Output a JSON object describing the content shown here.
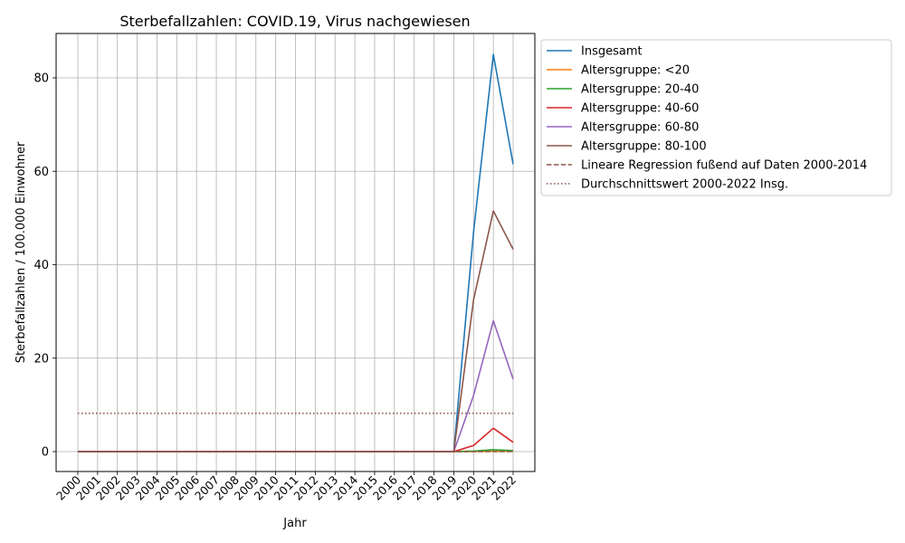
{
  "chart_data": {
    "type": "line",
    "title": "Sterbefallzahlen: COVID.19, Virus nachgewiesen",
    "xlabel": "Jahr",
    "ylabel": "Sterbefallzahlen / 100.000 Einwohner",
    "ylim": [
      -4.3,
      89.3
    ],
    "yticks": [
      0,
      20,
      40,
      60,
      80
    ],
    "grid": true,
    "legend_position": "outside upper right",
    "x": [
      2000,
      2001,
      2002,
      2003,
      2004,
      2005,
      2006,
      2007,
      2008,
      2009,
      2010,
      2011,
      2012,
      2013,
      2014,
      2015,
      2016,
      2017,
      2018,
      2019,
      2020,
      2021,
      2022
    ],
    "series": [
      {
        "name": "Insgesamt",
        "color": "#1f77b4",
        "style": "solid",
        "values": [
          0,
          0,
          0,
          0,
          0,
          0,
          0,
          0,
          0,
          0,
          0,
          0,
          0,
          0,
          0,
          0,
          0,
          0,
          0,
          0,
          47.0,
          85.0,
          61.5
        ]
      },
      {
        "name": "Altersgruppe: <20",
        "color": "#ff7f0e",
        "style": "solid",
        "values": [
          0,
          0,
          0,
          0,
          0,
          0,
          0,
          0,
          0,
          0,
          0,
          0,
          0,
          0,
          0,
          0,
          0,
          0,
          0,
          0,
          0.0,
          0.05,
          0.05
        ]
      },
      {
        "name": "Altersgruppe: 20-40",
        "color": "#2ca02c",
        "style": "solid",
        "values": [
          0,
          0,
          0,
          0,
          0,
          0,
          0,
          0,
          0,
          0,
          0,
          0,
          0,
          0,
          0,
          0,
          0,
          0,
          0,
          0,
          0.1,
          0.4,
          0.2
        ]
      },
      {
        "name": "Altersgruppe: 40-60",
        "color": "#d62728",
        "style": "solid",
        "values": [
          0,
          0,
          0,
          0,
          0,
          0,
          0,
          0,
          0,
          0,
          0,
          0,
          0,
          0,
          0,
          0,
          0,
          0,
          0,
          0,
          1.3,
          5.0,
          2.0
        ]
      },
      {
        "name": "Altersgruppe: 60-80",
        "color": "#9467bd",
        "style": "solid",
        "values": [
          0,
          0,
          0,
          0,
          0,
          0,
          0,
          0,
          0,
          0,
          0,
          0,
          0,
          0,
          0,
          0,
          0,
          0,
          0,
          0,
          12.0,
          28.0,
          15.5
        ]
      },
      {
        "name": "Altersgruppe: 80-100",
        "color": "#8c564b",
        "style": "solid",
        "values": [
          0,
          0,
          0,
          0,
          0,
          0,
          0,
          0,
          0,
          0,
          0,
          0,
          0,
          0,
          0,
          0,
          0,
          0,
          0,
          0,
          32.5,
          51.5,
          43.3
        ]
      },
      {
        "name": "Lineare Regression fußend auf Daten 2000-2014",
        "color": "#8c564b",
        "style": "dashed",
        "values": [
          0,
          0,
          0,
          0,
          0,
          0,
          0,
          0,
          0,
          0,
          0,
          0,
          0,
          0,
          0,
          0,
          0,
          0,
          0,
          0,
          0,
          0,
          0
        ]
      },
      {
        "name": "Durchschnittswert 2000-2022 Insg.",
        "color": "#8c564b",
        "style": "dotted",
        "values": [
          8.2,
          8.2,
          8.2,
          8.2,
          8.2,
          8.2,
          8.2,
          8.2,
          8.2,
          8.2,
          8.2,
          8.2,
          8.2,
          8.2,
          8.2,
          8.2,
          8.2,
          8.2,
          8.2,
          8.2,
          8.2,
          8.2,
          8.2
        ]
      }
    ]
  }
}
